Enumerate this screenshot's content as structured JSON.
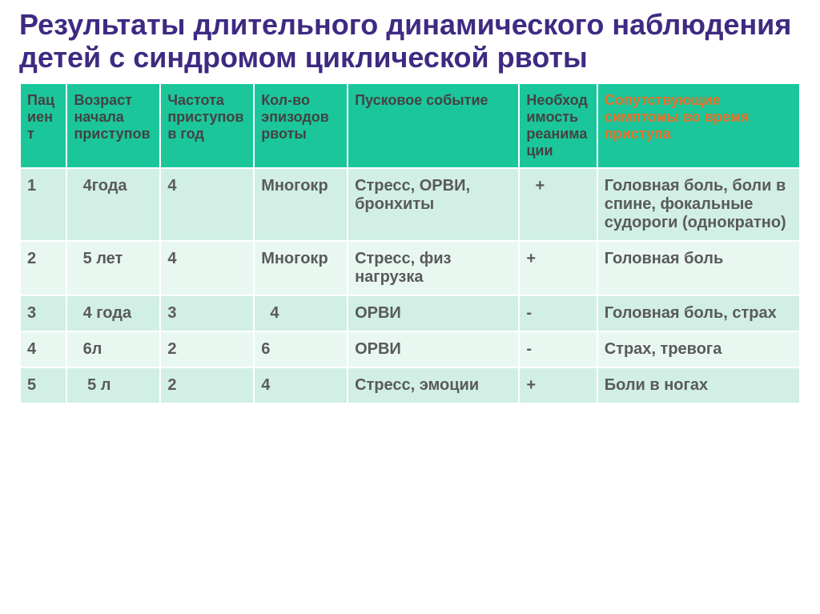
{
  "title_color": "#3e2a82",
  "title": "Результаты длительного динамического наблюдения  детей с синдромом циклической рвоты",
  "table": {
    "header_bg": "#1bc69b",
    "header_text_color": "#434343",
    "header_text_color_last": "#e86f28",
    "row_odd_bg": "#d1efe4",
    "row_even_bg": "#e9f7f1",
    "cell_text_color": "#5a5a5a",
    "col_widths_pct": [
      6,
      12,
      12,
      12,
      22,
      10,
      26
    ],
    "columns": [
      "Пациент",
      "Возраст начала приступов",
      "Частота приступов в год",
      "Кол-во эпизодов рвоты",
      "Пусковое событие",
      "Необходимость реанимации",
      "Сопутствующие симптомы во время приступа"
    ],
    "rows": [
      [
        "1",
        "  4года",
        "4",
        "Многокр",
        "Стресс, ОРВИ, бронхиты",
        "  +",
        "Головная боль, боли в спине, фокальные судороги (однократно)"
      ],
      [
        "2",
        "  5 лет",
        "4",
        "Многокр",
        "Стресс, физ нагрузка",
        "+",
        "Головная боль"
      ],
      [
        "3",
        "  4 года",
        "3",
        "  4",
        "ОРВИ",
        "-",
        "Головная боль, страх"
      ],
      [
        "4",
        "  6л",
        "2",
        "6",
        "ОРВИ",
        "-",
        "Страх, тревога"
      ],
      [
        "5",
        "   5 л",
        "2",
        "4",
        "Стресс, эмоции",
        "+",
        "Боли в ногах"
      ]
    ]
  }
}
